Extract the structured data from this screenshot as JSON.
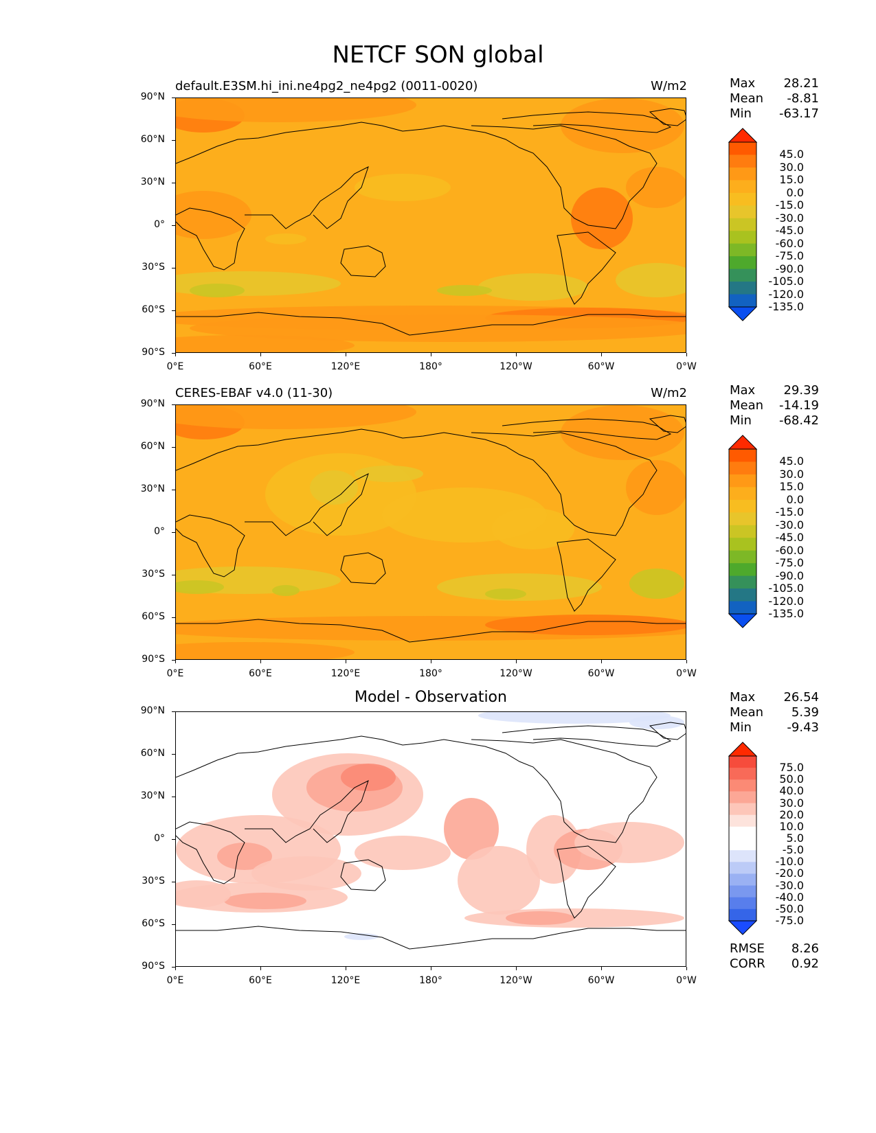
{
  "figure_title": "NETCF SON global",
  "x_ticks": [
    "0°E",
    "60°E",
    "120°E",
    "180°",
    "120°W",
    "60°W",
    "0°W"
  ],
  "y_ticks": [
    "90°N",
    "60°N",
    "30°N",
    "0°",
    "30°S",
    "60°S",
    "90°S"
  ],
  "panels": [
    {
      "title": "default.E3SM.hi_ini.ne4pg2_ne4pg2 (0011-0020)",
      "units": "W/m2",
      "stats": {
        "max_label": "Max",
        "max": "28.21",
        "mean_label": "Mean",
        "mean": "-8.81",
        "min_label": "Min",
        "min": "-63.17"
      },
      "colorbar_labels": [
        "45.0",
        "30.0",
        "15.0",
        "0.0",
        "-15.0",
        "-30.0",
        "-45.0",
        "-60.0",
        "-75.0",
        "-90.0",
        "-105.0",
        "-120.0",
        "-135.0"
      ],
      "colorbar_colors": [
        "#ff2a00",
        "#ff5a00",
        "#ff7c0f",
        "#ff9916",
        "#fdae1c",
        "#f8bd20",
        "#e8c52b",
        "#cbc524",
        "#a9c21f",
        "#7db826",
        "#4ea92c",
        "#35915a",
        "#247785",
        "#1262c1",
        "#0a4ff0"
      ]
    },
    {
      "title": "CERES-EBAF v4.0 (11-30)",
      "units": "W/m2",
      "stats": {
        "max_label": "Max",
        "max": "29.39",
        "mean_label": "Mean",
        "mean": "-14.19",
        "min_label": "Min",
        "min": "-68.42"
      },
      "colorbar_labels": [
        "45.0",
        "30.0",
        "15.0",
        "0.0",
        "-15.0",
        "-30.0",
        "-45.0",
        "-60.0",
        "-75.0",
        "-90.0",
        "-105.0",
        "-120.0",
        "-135.0"
      ],
      "colorbar_colors": [
        "#ff2a00",
        "#ff5a00",
        "#ff7c0f",
        "#ff9916",
        "#fdae1c",
        "#f8bd20",
        "#e8c52b",
        "#cbc524",
        "#a9c21f",
        "#7db826",
        "#4ea92c",
        "#35915a",
        "#247785",
        "#1262c1",
        "#0a4ff0"
      ]
    },
    {
      "title": "Model - Observation",
      "units": "",
      "stats": {
        "max_label": "Max",
        "max": "26.54",
        "mean_label": "Mean",
        "mean": "5.39",
        "min_label": "Min",
        "min": "-9.43"
      },
      "colorbar_labels": [
        "75.0",
        "50.0",
        "40.0",
        "30.0",
        "20.0",
        "10.0",
        "5.0",
        "-5.0",
        "-10.0",
        "-20.0",
        "-30.0",
        "-40.0",
        "-50.0",
        "-75.0"
      ],
      "colorbar_colors": [
        "#ff2a00",
        "#f64c3c",
        "#f86a58",
        "#fb8a75",
        "#fca796",
        "#fdc6b9",
        "#fde3dc",
        "#ffffff",
        "#ffffff",
        "#dde4fb",
        "#bccbf7",
        "#9ab1f3",
        "#7a98ef",
        "#587eec",
        "#3565e8",
        "#1a4cff"
      ],
      "rmse_label": "RMSE",
      "rmse": "8.26",
      "corr_label": "CORR",
      "corr": "0.92"
    }
  ]
}
